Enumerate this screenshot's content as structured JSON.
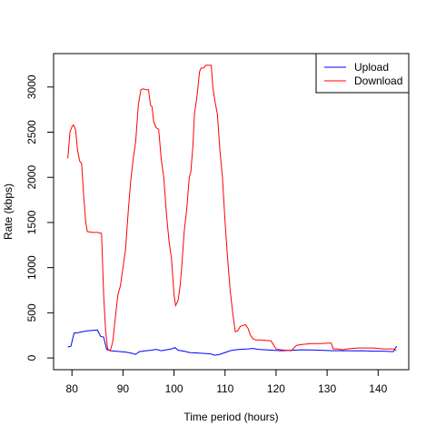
{
  "chart_data": {
    "type": "line",
    "title": "",
    "xlabel": "Time period (hours)",
    "ylabel": "Rate (kbps)",
    "xlim": [
      76.4,
      146.0
    ],
    "ylim": [
      -130,
      3370
    ],
    "x_ticks": [
      80,
      90,
      100,
      110,
      120,
      130,
      140
    ],
    "y_ticks": [
      0,
      500,
      1000,
      1500,
      2000,
      2500,
      3000
    ],
    "grid": false,
    "legend_position": "top-right",
    "series": [
      {
        "name": "Upload",
        "color": "#0000ff",
        "points": [
          [
            79.2,
            120
          ],
          [
            79.8,
            130
          ],
          [
            80.4,
            275
          ],
          [
            81.2,
            280
          ],
          [
            82.0,
            290
          ],
          [
            83.0,
            300
          ],
          [
            84.0,
            305
          ],
          [
            85.0,
            310
          ],
          [
            85.6,
            240
          ],
          [
            86.2,
            230
          ],
          [
            86.8,
            95
          ],
          [
            87.5,
            80
          ],
          [
            88.5,
            75
          ],
          [
            89.5,
            70
          ],
          [
            90.5,
            65
          ],
          [
            91.5,
            55
          ],
          [
            92.5,
            40
          ],
          [
            93.2,
            70
          ],
          [
            94.5,
            80
          ],
          [
            95.5,
            85
          ],
          [
            96.5,
            95
          ],
          [
            97.5,
            80
          ],
          [
            98.5,
            90
          ],
          [
            99.5,
            100
          ],
          [
            100.2,
            115
          ],
          [
            100.8,
            85
          ],
          [
            102.0,
            75
          ],
          [
            103.0,
            60
          ],
          [
            104.5,
            55
          ],
          [
            106.0,
            50
          ],
          [
            107.2,
            45
          ],
          [
            108.0,
            30
          ],
          [
            109.0,
            40
          ],
          [
            110.0,
            60
          ],
          [
            111.0,
            80
          ],
          [
            112.0,
            90
          ],
          [
            113.0,
            95
          ],
          [
            114.5,
            100
          ],
          [
            115.5,
            105
          ],
          [
            116.5,
            95
          ],
          [
            118.0,
            90
          ],
          [
            119.5,
            85
          ],
          [
            121.0,
            80
          ],
          [
            123.0,
            85
          ],
          [
            125.0,
            90
          ],
          [
            127.0,
            88
          ],
          [
            129.0,
            85
          ],
          [
            131.0,
            80
          ],
          [
            133.0,
            80
          ],
          [
            135.0,
            78
          ],
          [
            137.0,
            80
          ],
          [
            139.0,
            75
          ],
          [
            141.0,
            75
          ],
          [
            143.0,
            70
          ],
          [
            143.6,
            130
          ]
        ]
      },
      {
        "name": "Download",
        "color": "#ff0000",
        "points": [
          [
            79.2,
            2210
          ],
          [
            79.6,
            2500
          ],
          [
            80.0,
            2560
          ],
          [
            80.3,
            2580
          ],
          [
            80.7,
            2530
          ],
          [
            81.1,
            2300
          ],
          [
            81.5,
            2180
          ],
          [
            81.9,
            2150
          ],
          [
            82.3,
            1800
          ],
          [
            82.7,
            1500
          ],
          [
            83.0,
            1400
          ],
          [
            84.0,
            1390
          ],
          [
            85.0,
            1390
          ],
          [
            85.8,
            1380
          ],
          [
            86.2,
            700
          ],
          [
            86.6,
            300
          ],
          [
            87.0,
            100
          ],
          [
            87.5,
            80
          ],
          [
            88.0,
            180
          ],
          [
            88.5,
            450
          ],
          [
            89.0,
            700
          ],
          [
            89.5,
            800
          ],
          [
            90.0,
            1000
          ],
          [
            90.5,
            1200
          ],
          [
            91.0,
            1600
          ],
          [
            91.5,
            1950
          ],
          [
            92.0,
            2200
          ],
          [
            92.5,
            2400
          ],
          [
            93.0,
            2800
          ],
          [
            93.5,
            2970
          ],
          [
            94.0,
            2980
          ],
          [
            94.5,
            2970
          ],
          [
            95.0,
            2970
          ],
          [
            95.4,
            2800
          ],
          [
            95.7,
            2780
          ],
          [
            96.0,
            2620
          ],
          [
            96.5,
            2550
          ],
          [
            97.0,
            2530
          ],
          [
            97.5,
            2200
          ],
          [
            98.0,
            2000
          ],
          [
            98.5,
            1600
          ],
          [
            99.0,
            1300
          ],
          [
            99.5,
            1100
          ],
          [
            100.0,
            700
          ],
          [
            100.3,
            580
          ],
          [
            100.8,
            640
          ],
          [
            101.2,
            800
          ],
          [
            101.5,
            1000
          ],
          [
            102.0,
            1400
          ],
          [
            102.5,
            1650
          ],
          [
            103.0,
            2000
          ],
          [
            103.3,
            2060
          ],
          [
            103.7,
            2350
          ],
          [
            104.0,
            2700
          ],
          [
            104.5,
            2900
          ],
          [
            105.0,
            3170
          ],
          [
            105.3,
            3210
          ],
          [
            105.8,
            3210
          ],
          [
            106.2,
            3240
          ],
          [
            107.0,
            3240
          ],
          [
            107.3,
            3240
          ],
          [
            107.6,
            3000
          ],
          [
            108.0,
            2850
          ],
          [
            108.5,
            2700
          ],
          [
            109.0,
            2300
          ],
          [
            109.5,
            2000
          ],
          [
            110.0,
            1500
          ],
          [
            110.5,
            1100
          ],
          [
            111.0,
            750
          ],
          [
            111.5,
            500
          ],
          [
            112.0,
            290
          ],
          [
            112.5,
            300
          ],
          [
            113.0,
            350
          ],
          [
            113.5,
            360
          ],
          [
            114.0,
            370
          ],
          [
            114.5,
            330
          ],
          [
            115.0,
            250
          ],
          [
            115.5,
            210
          ],
          [
            116.0,
            200
          ],
          [
            117.0,
            200
          ],
          [
            118.0,
            195
          ],
          [
            119.0,
            190
          ],
          [
            120.0,
            100
          ],
          [
            121.0,
            90
          ],
          [
            122.0,
            85
          ],
          [
            123.0,
            80
          ],
          [
            124.0,
            140
          ],
          [
            125.0,
            150
          ],
          [
            126.0,
            155
          ],
          [
            127.0,
            160
          ],
          [
            128.0,
            160
          ],
          [
            129.0,
            160
          ],
          [
            130.0,
            165
          ],
          [
            130.8,
            165
          ],
          [
            131.2,
            100
          ],
          [
            132.0,
            100
          ],
          [
            133.0,
            90
          ],
          [
            134.0,
            100
          ],
          [
            135.0,
            105
          ],
          [
            136.0,
            110
          ],
          [
            137.0,
            110
          ],
          [
            138.0,
            110
          ],
          [
            139.0,
            110
          ],
          [
            140.0,
            105
          ],
          [
            141.0,
            100
          ],
          [
            142.0,
            100
          ],
          [
            143.0,
            100
          ],
          [
            143.6,
            80
          ]
        ]
      }
    ]
  }
}
